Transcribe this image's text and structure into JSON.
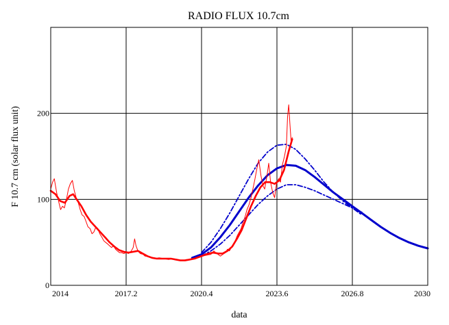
{
  "chart_data": {
    "type": "line",
    "title": "RADIO FLUX 10.7cm",
    "xlabel": "data",
    "ylabel": "F 10.7 cm (solar flux unit)",
    "xlim": [
      2014,
      2030
    ],
    "ylim": [
      0,
      300
    ],
    "x_ticks": [
      2014,
      2017.2,
      2020.4,
      2023.6,
      2026.8,
      2030
    ],
    "x_tick_labels": [
      "2014",
      "2017.2",
      "2020.4",
      "2023.6",
      "2026.8",
      "2030"
    ],
    "y_ticks": [
      0,
      100,
      200
    ],
    "y_tick_labels": [
      "0",
      "100",
      "200"
    ],
    "grid": true,
    "colors": {
      "observed": "#ff0000",
      "forecast": "#0000cc",
      "axis": "#000000"
    },
    "series": [
      {
        "style": "observed-monthly-thin",
        "color": "#ff0000",
        "points": [
          [
            2014.0,
            112
          ],
          [
            2014.08,
            120
          ],
          [
            2014.15,
            124
          ],
          [
            2014.25,
            108
          ],
          [
            2014.35,
            96
          ],
          [
            2014.42,
            88
          ],
          [
            2014.5,
            92
          ],
          [
            2014.58,
            90
          ],
          [
            2014.67,
            100
          ],
          [
            2014.75,
            112
          ],
          [
            2014.83,
            118
          ],
          [
            2014.92,
            122
          ],
          [
            2015.0,
            110
          ],
          [
            2015.08,
            102
          ],
          [
            2015.17,
            96
          ],
          [
            2015.25,
            88
          ],
          [
            2015.33,
            82
          ],
          [
            2015.42,
            80
          ],
          [
            2015.5,
            74
          ],
          [
            2015.58,
            68
          ],
          [
            2015.67,
            66
          ],
          [
            2015.75,
            60
          ],
          [
            2015.83,
            62
          ],
          [
            2015.92,
            68
          ],
          [
            2016.0,
            66
          ],
          [
            2016.08,
            60
          ],
          [
            2016.17,
            56
          ],
          [
            2016.25,
            52
          ],
          [
            2016.33,
            50
          ],
          [
            2016.42,
            48
          ],
          [
            2016.5,
            46
          ],
          [
            2016.58,
            44
          ],
          [
            2016.67,
            46
          ],
          [
            2016.75,
            42
          ],
          [
            2016.83,
            40
          ],
          [
            2016.92,
            38
          ],
          [
            2017.0,
            38
          ],
          [
            2017.1,
            37
          ],
          [
            2017.2,
            38
          ],
          [
            2017.3,
            37
          ],
          [
            2017.42,
            40
          ],
          [
            2017.5,
            44
          ],
          [
            2017.56,
            54
          ],
          [
            2017.62,
            46
          ],
          [
            2017.7,
            40
          ],
          [
            2017.8,
            37
          ],
          [
            2017.92,
            36
          ],
          [
            2018.0,
            34
          ],
          [
            2018.2,
            33
          ],
          [
            2018.4,
            31
          ],
          [
            2018.6,
            32
          ],
          [
            2018.8,
            31
          ],
          [
            2019.0,
            30
          ],
          [
            2019.2,
            31
          ],
          [
            2019.4,
            30
          ],
          [
            2019.6,
            29
          ],
          [
            2019.75,
            30
          ],
          [
            2019.9,
            30
          ],
          [
            2020.0,
            31
          ],
          [
            2020.2,
            32
          ],
          [
            2020.4,
            34
          ],
          [
            2020.6,
            35
          ],
          [
            2020.8,
            36
          ],
          [
            2020.92,
            40
          ],
          [
            2021.0,
            38
          ],
          [
            2021.1,
            36
          ],
          [
            2021.2,
            34
          ],
          [
            2021.3,
            36
          ],
          [
            2021.42,
            38
          ],
          [
            2021.5,
            42
          ],
          [
            2021.58,
            40
          ],
          [
            2021.67,
            44
          ],
          [
            2021.75,
            46
          ],
          [
            2021.83,
            52
          ],
          [
            2021.92,
            58
          ],
          [
            2022.0,
            62
          ],
          [
            2022.08,
            66
          ],
          [
            2022.17,
            74
          ],
          [
            2022.25,
            80
          ],
          [
            2022.33,
            88
          ],
          [
            2022.42,
            94
          ],
          [
            2022.5,
            102
          ],
          [
            2022.58,
            112
          ],
          [
            2022.67,
            124
          ],
          [
            2022.75,
            136
          ],
          [
            2022.83,
            146
          ],
          [
            2022.92,
            128
          ],
          [
            2023.0,
            116
          ],
          [
            2023.08,
            112
          ],
          [
            2023.17,
            126
          ],
          [
            2023.25,
            142
          ],
          [
            2023.33,
            120
          ],
          [
            2023.42,
            108
          ],
          [
            2023.5,
            102
          ],
          [
            2023.58,
            118
          ],
          [
            2023.67,
            124
          ],
          [
            2023.75,
            120
          ],
          [
            2023.83,
            140
          ],
          [
            2023.92,
            150
          ],
          [
            2024.0,
            162
          ],
          [
            2024.05,
            196
          ],
          [
            2024.1,
            210
          ],
          [
            2024.15,
            188
          ],
          [
            2024.2,
            168
          ],
          [
            2024.25,
            172
          ]
        ]
      },
      {
        "style": "observed-smoothed",
        "color": "#ff0000",
        "points": [
          [
            2014.0,
            110
          ],
          [
            2014.2,
            106
          ],
          [
            2014.4,
            98
          ],
          [
            2014.6,
            96
          ],
          [
            2014.8,
            104
          ],
          [
            2014.95,
            106
          ],
          [
            2015.1,
            100
          ],
          [
            2015.3,
            92
          ],
          [
            2015.5,
            82
          ],
          [
            2015.7,
            74
          ],
          [
            2015.9,
            68
          ],
          [
            2016.1,
            62
          ],
          [
            2016.3,
            56
          ],
          [
            2016.5,
            50
          ],
          [
            2016.7,
            45
          ],
          [
            2016.9,
            41
          ],
          [
            2017.1,
            39
          ],
          [
            2017.3,
            38
          ],
          [
            2017.5,
            39
          ],
          [
            2017.7,
            40
          ],
          [
            2017.9,
            37
          ],
          [
            2018.1,
            34
          ],
          [
            2018.3,
            32
          ],
          [
            2018.5,
            31
          ],
          [
            2018.7,
            31
          ],
          [
            2018.9,
            31
          ],
          [
            2019.1,
            31
          ],
          [
            2019.3,
            30
          ],
          [
            2019.5,
            29
          ],
          [
            2019.7,
            29
          ],
          [
            2019.9,
            30
          ],
          [
            2020.1,
            31
          ],
          [
            2020.3,
            33
          ],
          [
            2020.5,
            35
          ],
          [
            2020.7,
            37
          ],
          [
            2020.9,
            38
          ],
          [
            2021.1,
            37
          ],
          [
            2021.3,
            37
          ],
          [
            2021.5,
            40
          ],
          [
            2021.7,
            45
          ],
          [
            2021.9,
            54
          ],
          [
            2022.1,
            64
          ],
          [
            2022.3,
            78
          ],
          [
            2022.5,
            92
          ],
          [
            2022.7,
            104
          ],
          [
            2022.9,
            114
          ],
          [
            2023.1,
            120
          ],
          [
            2023.3,
            120
          ],
          [
            2023.5,
            118
          ],
          [
            2023.7,
            122
          ],
          [
            2023.9,
            134
          ],
          [
            2024.1,
            156
          ],
          [
            2024.25,
            170
          ]
        ]
      },
      {
        "style": "forecast-mean",
        "color": "#0000cc",
        "points": [
          [
            2020.0,
            32
          ],
          [
            2020.4,
            36
          ],
          [
            2020.8,
            44
          ],
          [
            2021.2,
            56
          ],
          [
            2021.6,
            70
          ],
          [
            2022.0,
            86
          ],
          [
            2022.4,
            102
          ],
          [
            2022.8,
            116
          ],
          [
            2023.2,
            128
          ],
          [
            2023.6,
            136
          ],
          [
            2024.0,
            140
          ],
          [
            2024.4,
            139
          ],
          [
            2024.8,
            134
          ],
          [
            2025.2,
            126
          ],
          [
            2025.6,
            117
          ],
          [
            2026.0,
            108
          ],
          [
            2026.4,
            100
          ],
          [
            2026.8,
            92
          ],
          [
            2027.2,
            84
          ],
          [
            2027.6,
            76
          ],
          [
            2028.0,
            68
          ],
          [
            2028.4,
            61
          ],
          [
            2028.8,
            55
          ],
          [
            2029.2,
            50
          ],
          [
            2029.6,
            46
          ],
          [
            2030.0,
            43
          ]
        ]
      },
      {
        "style": "forecast-upper",
        "color": "#0000cc",
        "points": [
          [
            2020.4,
            38
          ],
          [
            2020.8,
            50
          ],
          [
            2021.2,
            66
          ],
          [
            2021.6,
            84
          ],
          [
            2022.0,
            104
          ],
          [
            2022.4,
            124
          ],
          [
            2022.8,
            142
          ],
          [
            2023.2,
            155
          ],
          [
            2023.6,
            163
          ],
          [
            2024.0,
            164
          ],
          [
            2024.4,
            158
          ],
          [
            2024.8,
            147
          ],
          [
            2025.2,
            134
          ],
          [
            2025.6,
            120
          ],
          [
            2026.0,
            108
          ],
          [
            2026.4,
            98
          ],
          [
            2026.8,
            90
          ],
          [
            2027.2,
            82
          ]
        ]
      },
      {
        "style": "forecast-lower",
        "color": "#0000cc",
        "points": [
          [
            2020.4,
            34
          ],
          [
            2020.8,
            40
          ],
          [
            2021.2,
            48
          ],
          [
            2021.6,
            58
          ],
          [
            2022.0,
            70
          ],
          [
            2022.4,
            82
          ],
          [
            2022.8,
            94
          ],
          [
            2023.2,
            104
          ],
          [
            2023.6,
            112
          ],
          [
            2024.0,
            117
          ],
          [
            2024.4,
            117
          ],
          [
            2024.8,
            114
          ],
          [
            2025.2,
            110
          ],
          [
            2025.6,
            105
          ],
          [
            2026.0,
            100
          ],
          [
            2026.4,
            95
          ],
          [
            2026.8,
            90
          ],
          [
            2027.2,
            85
          ]
        ]
      }
    ]
  }
}
